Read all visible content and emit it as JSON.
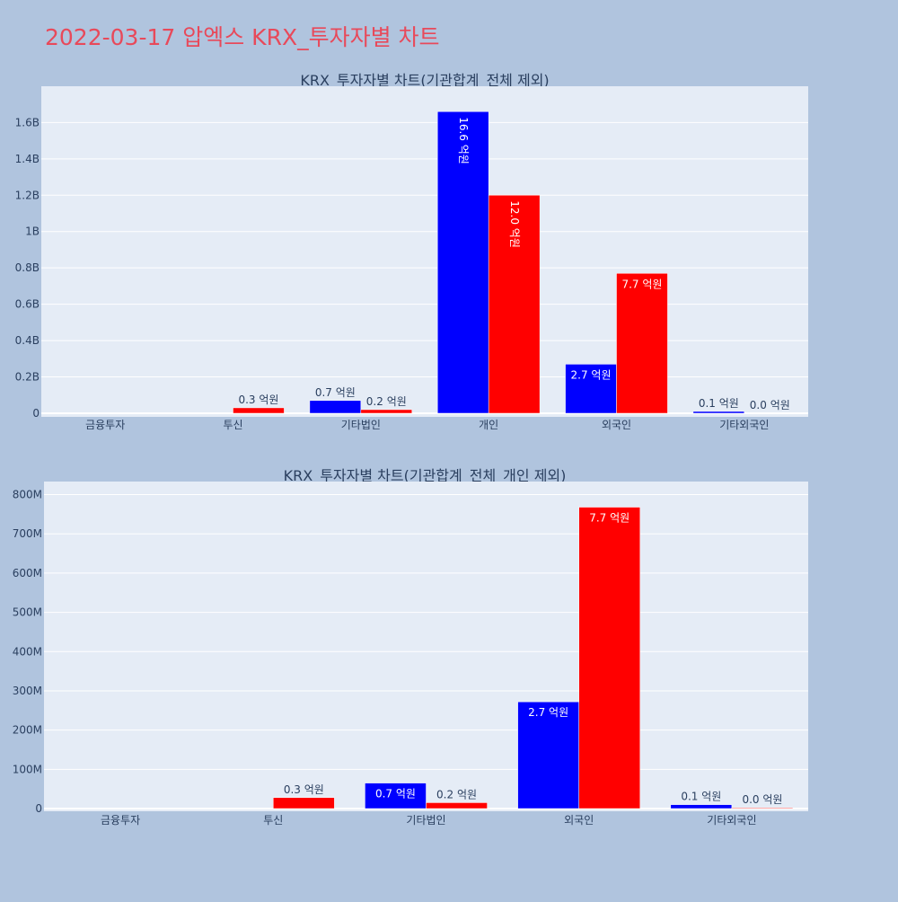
{
  "page": {
    "title": "2022-03-17 압엑스 KRX_투자자별 차트",
    "background": "#b0c4de",
    "plot_background": "#e5ecf6",
    "title_color": "#e8495a"
  },
  "chart_data": [
    {
      "type": "bar",
      "title": "KRX_투자자별 차트(기관합계_전체 제외)",
      "categories": [
        "금융투자",
        "투신",
        "기타법인",
        "개인",
        "외국인",
        "기타외국인"
      ],
      "ylim": [
        0,
        1760000000
      ],
      "yticks": [
        0,
        200000000,
        400000000,
        600000000,
        800000000,
        1000000000,
        1200000000,
        1400000000,
        1600000000
      ],
      "ytick_labels": [
        "0",
        "0.2B",
        "0.4B",
        "0.6B",
        "0.8B",
        "1B",
        "1.2B",
        "1.4B",
        "1.6B"
      ],
      "grid": true,
      "series": [
        {
          "color": "#0000ff",
          "values": [
            0,
            0,
            70000000,
            1660000000,
            270000000,
            10000000
          ],
          "labels": [
            "",
            "",
            "0.7 억원",
            "16.6 억원",
            "2.7 억원",
            "0.1 억원"
          ],
          "label_inside": [
            false,
            false,
            false,
            true,
            true,
            false
          ],
          "label_rotated": [
            false,
            false,
            false,
            true,
            false,
            false
          ]
        },
        {
          "color": "#ff0000",
          "values": [
            0,
            30000000,
            20000000,
            1200000000,
            770000000,
            0
          ],
          "labels": [
            "",
            "0.3 억원",
            "0.2 억원",
            "12.0 억원",
            "7.7 억원",
            "0.0 억원"
          ],
          "label_inside": [
            false,
            false,
            false,
            true,
            true,
            false
          ],
          "label_rotated": [
            false,
            false,
            false,
            true,
            false,
            false
          ]
        }
      ]
    },
    {
      "type": "bar",
      "title": "KRX_투자자별 차트(기관합계_전체_개인 제외)",
      "categories": [
        "금융투자",
        "투신",
        "기타법인",
        "외국인",
        "기타외국인"
      ],
      "ylim": [
        0,
        815000000
      ],
      "yticks": [
        0,
        100000000,
        200000000,
        300000000,
        400000000,
        500000000,
        600000000,
        700000000,
        800000000
      ],
      "ytick_labels": [
        "0",
        "100M",
        "200M",
        "300M",
        "400M",
        "500M",
        "600M",
        "700M",
        "800M"
      ],
      "grid": true,
      "series": [
        {
          "color": "#0000ff",
          "values": [
            0,
            0,
            65000000,
            272000000,
            10000000
          ],
          "labels": [
            "",
            "",
            "0.7 억원",
            "2.7 억원",
            "0.1 억원"
          ],
          "label_inside": [
            false,
            false,
            true,
            true,
            false
          ],
          "label_rotated": [
            false,
            false,
            false,
            false,
            false
          ]
        },
        {
          "color": "#ff0000",
          "values": [
            0,
            28000000,
            15000000,
            768000000,
            2000000
          ],
          "labels": [
            "",
            "0.3 억원",
            "0.2 억원",
            "7.7 억원",
            "0.0 억원"
          ],
          "label_inside": [
            false,
            false,
            false,
            true,
            false
          ],
          "label_rotated": [
            false,
            false,
            false,
            false,
            false
          ]
        }
      ]
    }
  ]
}
